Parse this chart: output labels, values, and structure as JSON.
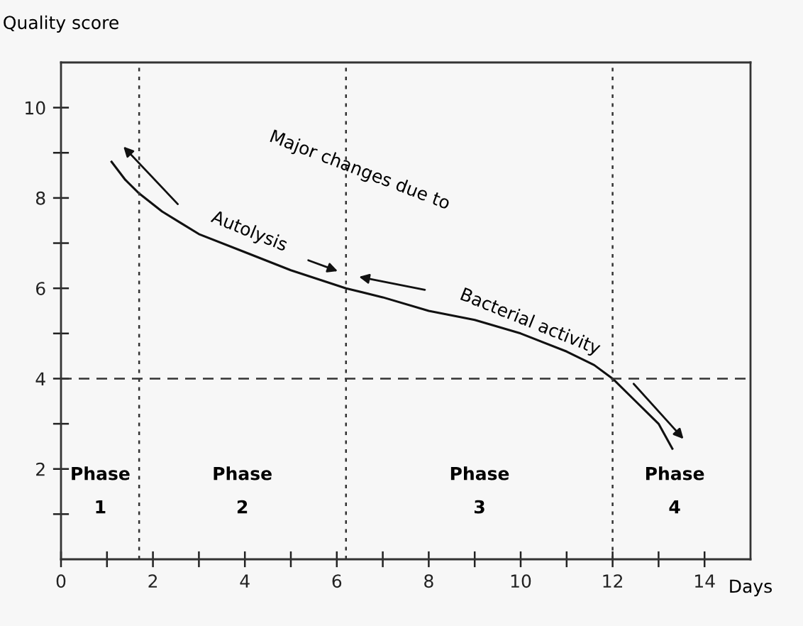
{
  "chart_data": {
    "type": "line",
    "xlabel": "Days",
    "ylabel": "Quality score",
    "x": [
      1.1,
      1.4,
      1.7,
      2.2,
      3,
      4,
      5,
      6.2,
      7,
      8,
      9,
      10,
      11,
      11.6,
      12,
      12.5,
      13,
      13.3
    ],
    "series": [
      {
        "color": "#111111",
        "values": [
          8.8,
          8.4,
          8.1,
          7.7,
          7.2,
          6.8,
          6.4,
          6.0,
          5.8,
          5.5,
          5.3,
          5.0,
          4.6,
          4.3,
          4.0,
          3.5,
          3.0,
          2.45
        ]
      }
    ],
    "xlim": [
      0,
      15
    ],
    "ylim": [
      0,
      11
    ],
    "xticks": [
      0,
      {
        "value": 1,
        "label": null
      },
      2,
      {
        "value": 3,
        "label": null
      },
      4,
      {
        "value": 5,
        "label": null
      },
      6,
      {
        "value": 7,
        "label": null
      },
      8,
      {
        "value": 9,
        "label": null
      },
      10,
      {
        "value": 11,
        "label": null
      },
      12,
      {
        "value": 13,
        "label": null
      },
      14
    ],
    "yticks": [
      {
        "value": 1,
        "label": null
      },
      2,
      {
        "value": 3,
        "label": null
      },
      4,
      {
        "value": 5,
        "label": null
      },
      6,
      {
        "value": 7,
        "label": null
      },
      8,
      {
        "value": 9,
        "label": null
      },
      10
    ],
    "ref_lines": [
      {
        "axis": "y",
        "value": 4,
        "line_style": "dashed",
        "color": "#333333"
      },
      {
        "axis": "x",
        "value": 1.7,
        "line_style": "dotted",
        "color": "#333333"
      },
      {
        "axis": "x",
        "value": 6.2,
        "line_style": "dotted",
        "color": "#333333"
      },
      {
        "axis": "x",
        "value": 12,
        "line_style": "dotted",
        "color": "#333333"
      }
    ],
    "annotations": [
      "Phase\n1",
      "Phase\n2",
      "Phase\n3",
      "Phase\n4",
      "Major changes due to",
      "Autolysis",
      "Bacterial activity"
    ],
    "grid": false,
    "legend": false,
    "marker": "none",
    "line_style": "solid"
  }
}
